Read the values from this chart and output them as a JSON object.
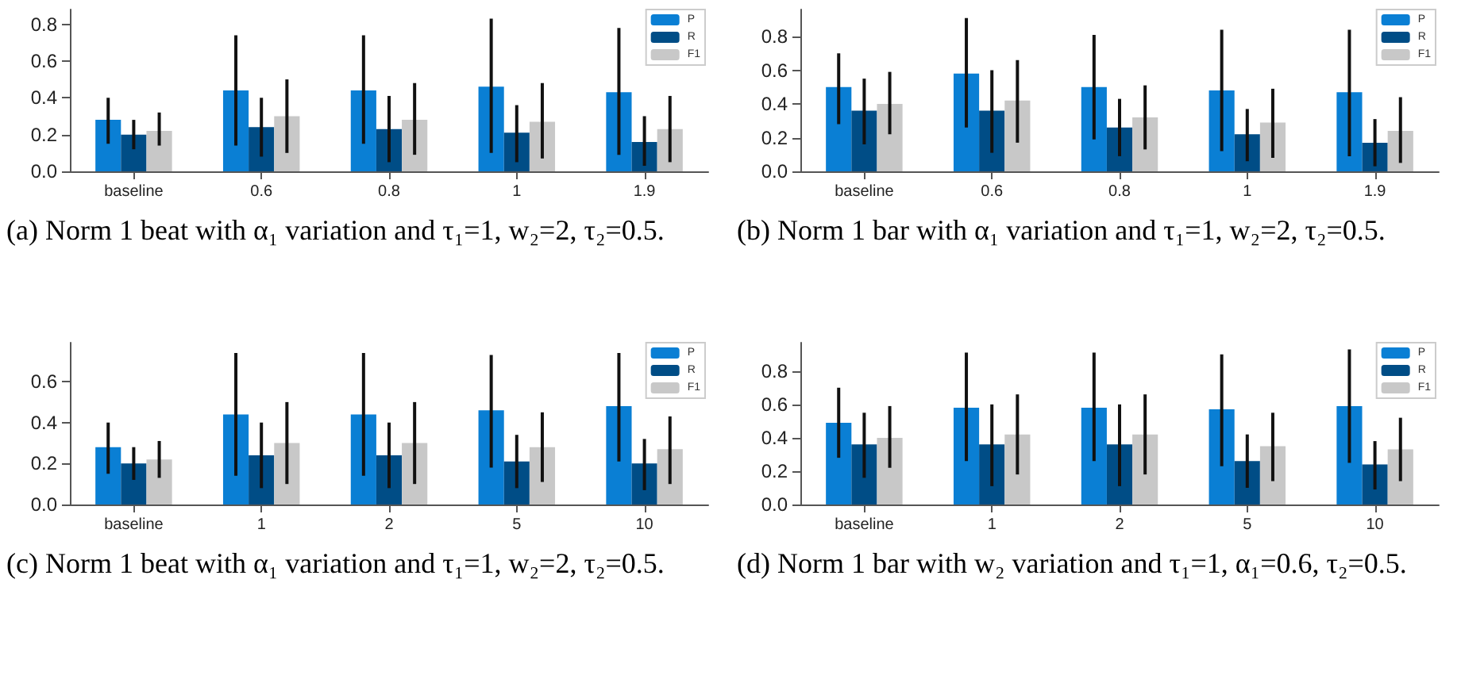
{
  "chart_data": [
    {
      "type": "bar",
      "categories": [
        "baseline",
        "0.6",
        "0.8",
        "1",
        "1.9"
      ],
      "ylim": [
        0,
        0.88
      ],
      "yticks": [
        {
          "value": 0,
          "label": "0.0"
        },
        {
          "value": 0.2,
          "label": "0.2"
        },
        {
          "value": 0.4,
          "label": "0.4"
        },
        {
          "value": 0.6,
          "label": "0.6"
        },
        {
          "value": 0.8,
          "label": "0.8"
        }
      ],
      "legend": "top right",
      "annotations": [
        "(a) Norm 1 beat with α₁ variation and τ₁=1, w₂=2, τ₂=0.5."
      ],
      "series": [
        {
          "name": "P",
          "color": "#0a7fd4",
          "values": [
            0.28,
            0.44,
            0.44,
            0.46,
            0.43
          ],
          "errors": [
            [
              0.15,
              0.4
            ],
            [
              0.14,
              0.74
            ],
            [
              0.15,
              0.74
            ],
            [
              0.1,
              0.83
            ],
            [
              0.09,
              0.78
            ]
          ]
        },
        {
          "name": "R",
          "color": "#004d86",
          "values": [
            0.2,
            0.24,
            0.23,
            0.21,
            0.16
          ],
          "errors": [
            [
              0.12,
              0.28
            ],
            [
              0.08,
              0.4
            ],
            [
              0.05,
              0.41
            ],
            [
              0.05,
              0.36
            ],
            [
              0.03,
              0.3
            ]
          ]
        },
        {
          "name": "F1",
          "color": "#c8c8c8",
          "values": [
            0.22,
            0.3,
            0.28,
            0.27,
            0.23
          ],
          "errors": [
            [
              0.14,
              0.32
            ],
            [
              0.1,
              0.5
            ],
            [
              0.09,
              0.48
            ],
            [
              0.07,
              0.48
            ],
            [
              0.05,
              0.41
            ]
          ]
        }
      ]
    },
    {
      "type": "bar",
      "categories": [
        "baseline",
        "0.6",
        "0.8",
        "1",
        "1.9"
      ],
      "ylim": [
        0,
        0.96
      ],
      "yticks": [
        {
          "value": 0,
          "label": "0.0"
        },
        {
          "value": 0.2,
          "label": "0.2"
        },
        {
          "value": 0.4,
          "label": "0.4"
        },
        {
          "value": 0.6,
          "label": "0.6"
        },
        {
          "value": 0.8,
          "label": "0.8"
        }
      ],
      "legend": "top right",
      "annotations": [
        "(b) Norm 1 bar with α₁ variation and τ₁=1, w₂=2, τ₂=0.5."
      ],
      "series": [
        {
          "name": "P",
          "color": "#0a7fd4",
          "values": [
            0.5,
            0.58,
            0.5,
            0.48,
            0.47
          ],
          "errors": [
            [
              0.28,
              0.7
            ],
            [
              0.26,
              0.91
            ],
            [
              0.19,
              0.81
            ],
            [
              0.12,
              0.84
            ],
            [
              0.09,
              0.84
            ]
          ]
        },
        {
          "name": "R",
          "color": "#004d86",
          "values": [
            0.36,
            0.36,
            0.26,
            0.22,
            0.17
          ],
          "errors": [
            [
              0.16,
              0.55
            ],
            [
              0.11,
              0.6
            ],
            [
              0.09,
              0.43
            ],
            [
              0.06,
              0.37
            ],
            [
              0.03,
              0.31
            ]
          ]
        },
        {
          "name": "F1",
          "color": "#c8c8c8",
          "values": [
            0.4,
            0.42,
            0.32,
            0.29,
            0.24
          ],
          "errors": [
            [
              0.22,
              0.59
            ],
            [
              0.17,
              0.66
            ],
            [
              0.13,
              0.51
            ],
            [
              0.08,
              0.49
            ],
            [
              0.05,
              0.44
            ]
          ]
        }
      ]
    },
    {
      "type": "bar",
      "categories": [
        "baseline",
        "1",
        "2",
        "5",
        "10"
      ],
      "ylim": [
        0,
        0.79
      ],
      "yticks": [
        {
          "value": 0,
          "label": "0.0"
        },
        {
          "value": 0.2,
          "label": "0.2"
        },
        {
          "value": 0.4,
          "label": "0.4"
        },
        {
          "value": 0.6,
          "label": "0.6"
        }
      ],
      "legend": "top right",
      "annotations": [
        "(c) Norm 1 beat with α₁ variation and τ₁=1, w₂=2, τ₂=0.5."
      ],
      "series": [
        {
          "name": "P",
          "color": "#0a7fd4",
          "values": [
            0.28,
            0.44,
            0.44,
            0.46,
            0.48
          ],
          "errors": [
            [
              0.15,
              0.4
            ],
            [
              0.14,
              0.74
            ],
            [
              0.14,
              0.74
            ],
            [
              0.18,
              0.73
            ],
            [
              0.21,
              0.74
            ]
          ]
        },
        {
          "name": "R",
          "color": "#004d86",
          "values": [
            0.2,
            0.24,
            0.24,
            0.21,
            0.2
          ],
          "errors": [
            [
              0.12,
              0.28
            ],
            [
              0.08,
              0.4
            ],
            [
              0.08,
              0.4
            ],
            [
              0.08,
              0.34
            ],
            [
              0.07,
              0.32
            ]
          ]
        },
        {
          "name": "F1",
          "color": "#c8c8c8",
          "values": [
            0.22,
            0.3,
            0.3,
            0.28,
            0.27
          ],
          "errors": [
            [
              0.13,
              0.31
            ],
            [
              0.1,
              0.5
            ],
            [
              0.1,
              0.5
            ],
            [
              0.11,
              0.45
            ],
            [
              0.1,
              0.43
            ]
          ]
        }
      ]
    },
    {
      "type": "bar",
      "categories": [
        "baseline",
        "1",
        "2",
        "5",
        "10"
      ],
      "ylim": [
        0,
        0.97
      ],
      "yticks": [
        {
          "value": 0,
          "label": "0.0"
        },
        {
          "value": 0.2,
          "label": "0.2"
        },
        {
          "value": 0.4,
          "label": "0.4"
        },
        {
          "value": 0.6,
          "label": "0.6"
        },
        {
          "value": 0.8,
          "label": "0.8"
        }
      ],
      "legend": "top right",
      "annotations": [
        "(d) Norm 1 bar with w₂ variation and τ₁=1, α₁=0.6, τ₂=0.5."
      ],
      "series": [
        {
          "name": "P",
          "color": "#0a7fd4",
          "values": [
            0.49,
            0.58,
            0.58,
            0.57,
            0.59
          ],
          "errors": [
            [
              0.28,
              0.7
            ],
            [
              0.26,
              0.91
            ],
            [
              0.26,
              0.91
            ],
            [
              0.23,
              0.9
            ],
            [
              0.25,
              0.93
            ]
          ]
        },
        {
          "name": "R",
          "color": "#004d86",
          "values": [
            0.36,
            0.36,
            0.36,
            0.26,
            0.24
          ],
          "errors": [
            [
              0.16,
              0.55
            ],
            [
              0.11,
              0.6
            ],
            [
              0.11,
              0.6
            ],
            [
              0.1,
              0.42
            ],
            [
              0.09,
              0.38
            ]
          ]
        },
        {
          "name": "F1",
          "color": "#c8c8c8",
          "values": [
            0.4,
            0.42,
            0.42,
            0.35,
            0.33
          ],
          "errors": [
            [
              0.22,
              0.59
            ],
            [
              0.18,
              0.66
            ],
            [
              0.18,
              0.66
            ],
            [
              0.14,
              0.55
            ],
            [
              0.14,
              0.52
            ]
          ]
        }
      ]
    }
  ]
}
